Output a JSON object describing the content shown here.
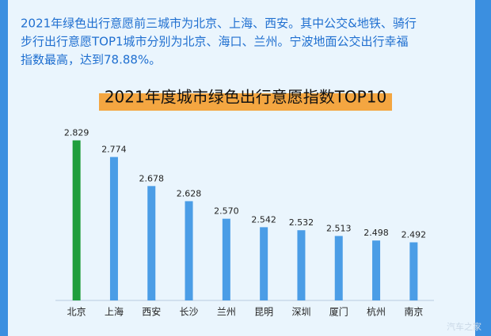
{
  "description": [
    "2021年绿色出行意愿前三城市为北京、上海、西安。其中公交&地铁、骑行",
    "步行出行意愿TOP1城市分别为北京、海口、兰州。宁波地面公交出行幸福",
    "指数最高，达到78.88%。"
  ],
  "chart_data": {
    "type": "bar",
    "title": "2021年度城市绿色出行意愿指数TOP10",
    "categories": [
      "北京",
      "上海",
      "西安",
      "长沙",
      "兰州",
      "昆明",
      "深圳",
      "厦门",
      "杭州",
      "南京"
    ],
    "values": [
      2.829,
      2.774,
      2.678,
      2.628,
      2.57,
      2.542,
      2.532,
      2.513,
      2.498,
      2.492
    ],
    "value_labels": [
      "2.829",
      "2.774",
      "2.678",
      "2.628",
      "2.570",
      "2.542",
      "2.532",
      "2.513",
      "2.498",
      "2.492"
    ],
    "colors": [
      "#1f9e3c",
      "#4b9de6",
      "#4b9de6",
      "#4b9de6",
      "#4b9de6",
      "#4b9de6",
      "#4b9de6",
      "#4b9de6",
      "#4b9de6",
      "#4b9de6"
    ],
    "ylim": [
      2.3,
      2.85
    ]
  },
  "watermark": "汽车之家"
}
